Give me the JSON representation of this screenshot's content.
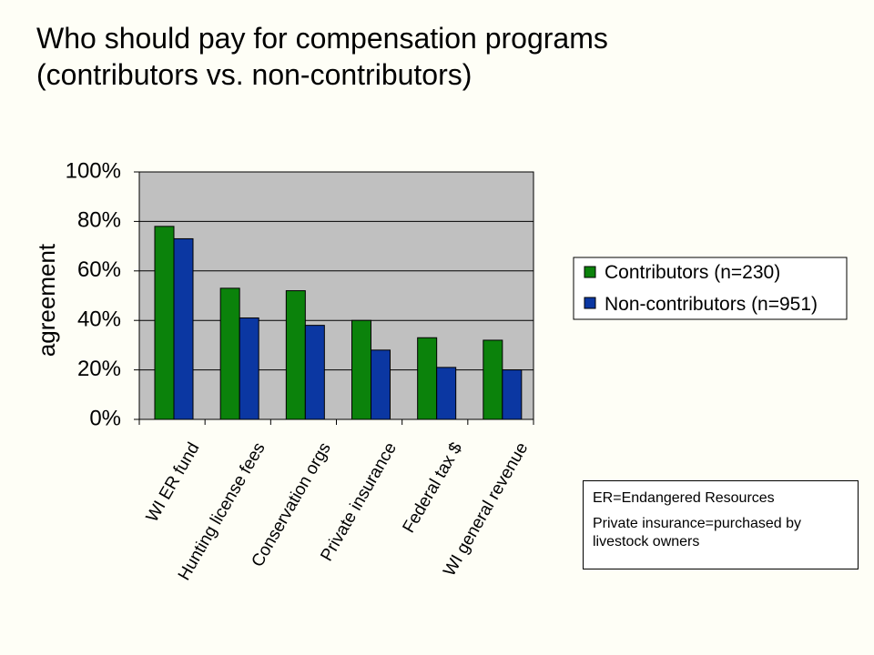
{
  "title": {
    "line1": "Who should pay for compensation programs",
    "line2": "(contributors vs. non-contributors)"
  },
  "colors": {
    "plot_bg": "#c0c0c0",
    "contributors": "#0b820b",
    "non_contributors": "#0b37a2"
  },
  "note": {
    "line1": "ER=Endangered Resources",
    "line2": "Private insurance=purchased by livestock owners"
  },
  "chart_data": {
    "type": "bar",
    "ylabel": "agreement",
    "xlabel": "",
    "ylim": [
      0,
      100
    ],
    "yticks": [
      0,
      20,
      40,
      60,
      80,
      100
    ],
    "ytick_labels": [
      "0%",
      "20%",
      "40%",
      "60%",
      "80%",
      "100%"
    ],
    "grid": true,
    "legend_position": "right",
    "categories": [
      "WI ER fund",
      "Hunting license fees",
      "Conservation orgs",
      "Private insurance",
      "Federal tax $",
      "WI general revenue"
    ],
    "series": [
      {
        "name": "Contributors (n=230)",
        "color": "#0b820b",
        "values": [
          78,
          53,
          52,
          40,
          33,
          32
        ]
      },
      {
        "name": "Non-contributors (n=951)",
        "color": "#0b37a2",
        "values": [
          73,
          41,
          38,
          28,
          21,
          20
        ]
      }
    ]
  }
}
